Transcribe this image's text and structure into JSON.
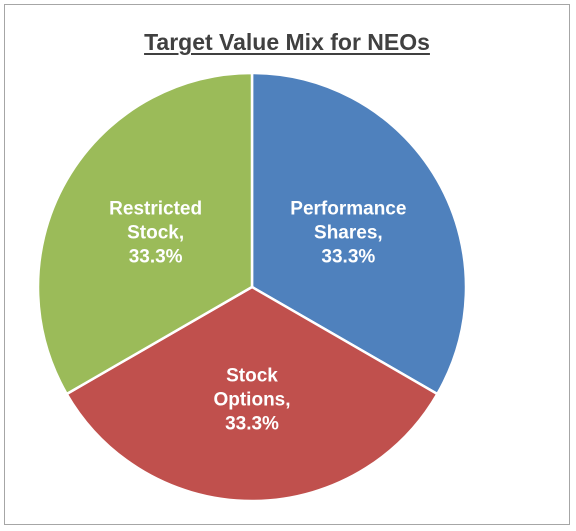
{
  "chart_data": {
    "type": "pie",
    "title": "Target Value Mix for NEOs",
    "slices": [
      {
        "name": "Performance Shares",
        "value": 33.3,
        "label_lines": [
          "Performance",
          "Shares,",
          "33.3%"
        ],
        "color": "#4f81bd"
      },
      {
        "name": "Stock Options",
        "value": 33.3,
        "label_lines": [
          "Stock",
          "Options,",
          "33.3%"
        ],
        "color": "#c0504d"
      },
      {
        "name": "Restricted Stock",
        "value": 33.3,
        "label_lines": [
          "Restricted",
          "Stock,",
          "33.3%"
        ],
        "color": "#9bbb59"
      }
    ],
    "start_angle_deg": 0,
    "direction": "clockwise",
    "slice_border_color": "#ffffff",
    "legend": "none",
    "data_labels": "inside"
  }
}
